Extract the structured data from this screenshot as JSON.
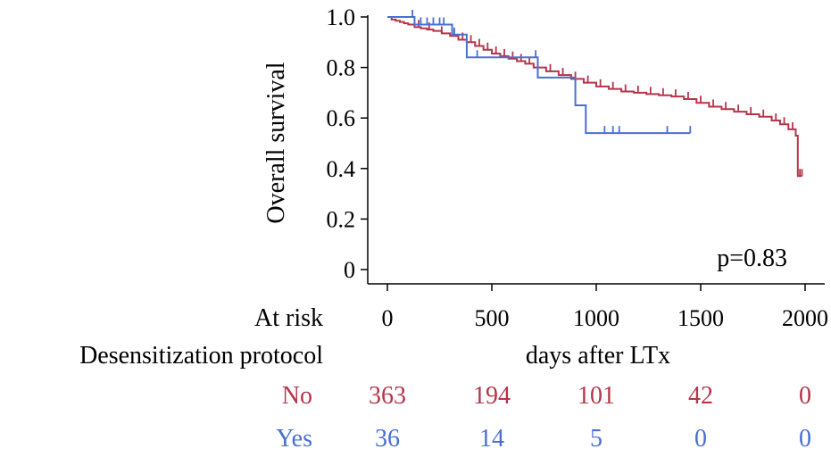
{
  "chart_data": {
    "type": "line",
    "subtype": "kaplan-meier",
    "title": "",
    "xlabel": "days after LTx",
    "ylabel": "Overall survival",
    "xlim": [
      0,
      2000
    ],
    "ylim": [
      0,
      1.0
    ],
    "x_ticks": [
      "0",
      "500",
      "1000",
      "1500",
      "2000"
    ],
    "y_ticks": [
      "0",
      "0.2",
      "0.4",
      "0.6",
      "0.8",
      "1.0"
    ],
    "grid": false,
    "annotation": "p=0.83",
    "colors": {
      "No": "#b5354a",
      "Yes": "#4a6fd4"
    },
    "series": [
      {
        "name": "No",
        "steps": [
          [
            0,
            1.0
          ],
          [
            20,
            0.99
          ],
          [
            40,
            0.985
          ],
          [
            60,
            0.98
          ],
          [
            80,
            0.975
          ],
          [
            100,
            0.97
          ],
          [
            130,
            0.96
          ],
          [
            160,
            0.955
          ],
          [
            190,
            0.95
          ],
          [
            220,
            0.945
          ],
          [
            260,
            0.935
          ],
          [
            300,
            0.925
          ],
          [
            340,
            0.91
          ],
          [
            380,
            0.9
          ],
          [
            420,
            0.885
          ],
          [
            460,
            0.87
          ],
          [
            500,
            0.855
          ],
          [
            540,
            0.845
          ],
          [
            580,
            0.835
          ],
          [
            620,
            0.825
          ],
          [
            660,
            0.815
          ],
          [
            700,
            0.8
          ],
          [
            760,
            0.785
          ],
          [
            820,
            0.77
          ],
          [
            880,
            0.755
          ],
          [
            940,
            0.74
          ],
          [
            1000,
            0.725
          ],
          [
            1060,
            0.715
          ],
          [
            1120,
            0.705
          ],
          [
            1180,
            0.7
          ],
          [
            1240,
            0.695
          ],
          [
            1300,
            0.69
          ],
          [
            1360,
            0.685
          ],
          [
            1420,
            0.675
          ],
          [
            1480,
            0.66
          ],
          [
            1540,
            0.645
          ],
          [
            1600,
            0.635
          ],
          [
            1660,
            0.625
          ],
          [
            1720,
            0.615
          ],
          [
            1780,
            0.605
          ],
          [
            1840,
            0.59
          ],
          [
            1880,
            0.575
          ],
          [
            1920,
            0.555
          ],
          [
            1955,
            0.53
          ],
          [
            1965,
            0.37
          ],
          [
            1985,
            0.37
          ]
        ],
        "censor_x": [
          150,
          200,
          260,
          320,
          360,
          400,
          440,
          480,
          520,
          560,
          600,
          640,
          680,
          720,
          780,
          840,
          900,
          960,
          1020,
          1080,
          1140,
          1200,
          1260,
          1320,
          1380,
          1440,
          1500,
          1560,
          1620,
          1680,
          1740,
          1800,
          1860,
          1900,
          1940,
          1975,
          1985
        ]
      },
      {
        "name": "Yes",
        "steps": [
          [
            0,
            1.0
          ],
          [
            130,
            0.97
          ],
          [
            310,
            0.93
          ],
          [
            380,
            0.84
          ],
          [
            720,
            0.76
          ],
          [
            900,
            0.65
          ],
          [
            950,
            0.54
          ],
          [
            1450,
            0.54
          ]
        ],
        "censor_x": [
          120,
          160,
          190,
          220,
          250,
          270,
          320,
          430,
          710,
          1040,
          1080,
          1110,
          1340,
          1450
        ]
      }
    ],
    "risk_table": {
      "header": "At risk",
      "group_title": "Desensitization protocol",
      "times": [
        0,
        500,
        1000,
        1500,
        2000
      ],
      "rows": [
        {
          "label": "No",
          "values": [
            "363",
            "194",
            "101",
            "42",
            "0"
          ]
        },
        {
          "label": "Yes",
          "values": [
            "36",
            "14",
            "5",
            "0",
            "0"
          ]
        }
      ]
    }
  }
}
